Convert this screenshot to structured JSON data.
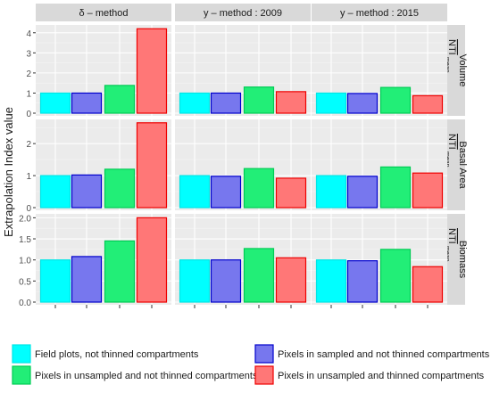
{
  "chart_data": {
    "type": "bar",
    "ylabel": "Extrapolation Index value",
    "categories": [
      "Field plots, not thinned compartments",
      "Pixels in sampled and not thinned compartments",
      "Pixels in unsampled and not thinned compartments",
      "Pixels in unsampled and thinned compartments"
    ],
    "colors": {
      "fill": [
        "#00ffff",
        "#7777ee",
        "#22ee77",
        "#ff7777"
      ],
      "stroke": [
        "#00e5e5",
        "#0000cc",
        "#00cc55",
        "#ee0000"
      ]
    },
    "columns": [
      "δ – method",
      "y – method : 2009",
      "y – method : 2015"
    ],
    "rows": [
      {
        "label": "Volume",
        "ylim": [
          0,
          4.3
        ],
        "ticks": [
          "0",
          "1",
          "2",
          "3",
          "4"
        ],
        "tick_values": [
          0,
          1,
          2,
          3,
          4
        ],
        "values": [
          [
            1.0,
            1.0,
            1.38,
            4.2
          ],
          [
            1.0,
            1.0,
            1.3,
            1.07
          ],
          [
            1.0,
            0.98,
            1.28,
            0.87
          ]
        ]
      },
      {
        "label": "Basal Area",
        "ylim": [
          0,
          2.7
        ],
        "ticks": [
          "0",
          "1",
          "2"
        ],
        "tick_values": [
          0,
          1,
          2
        ],
        "values": [
          [
            1.0,
            1.02,
            1.2,
            2.65
          ],
          [
            1.0,
            0.98,
            1.22,
            0.92
          ],
          [
            1.0,
            0.98,
            1.27,
            1.08
          ]
        ]
      },
      {
        "label": "Biomass",
        "ylim": [
          0,
          2.05
        ],
        "ticks": [
          "0.0",
          "0.5",
          "1.0",
          "1.5",
          "2.0"
        ],
        "tick_values": [
          0,
          0.5,
          1,
          1.5,
          2
        ],
        "values": [
          [
            1.0,
            1.08,
            1.45,
            2.0
          ],
          [
            1.0,
            1.0,
            1.27,
            1.05
          ],
          [
            1.0,
            0.98,
            1.25,
            0.84
          ]
        ]
      }
    ],
    "strip_right_label_main": "NTI",
    "strip_right_label_sub": "mean",
    "grid": true,
    "legend_position": "bottom"
  }
}
